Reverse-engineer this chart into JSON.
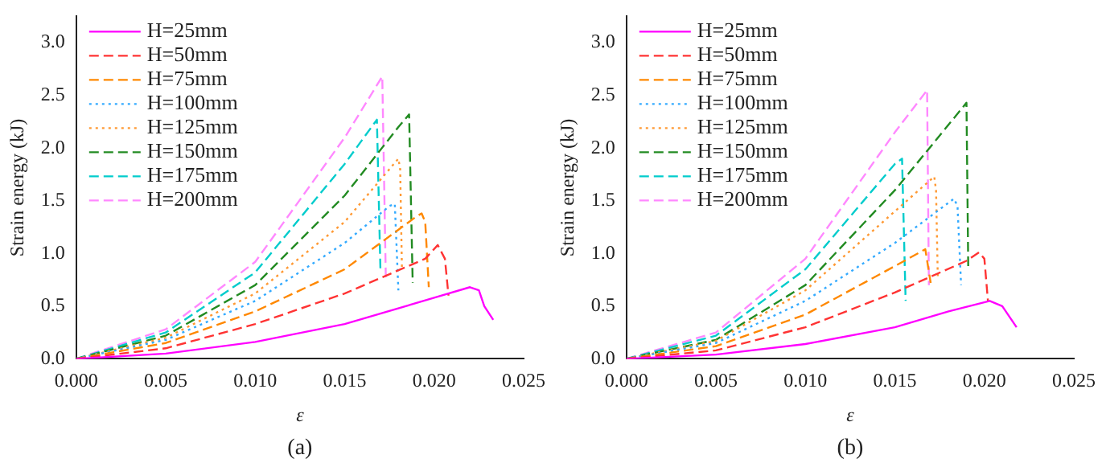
{
  "chart_data": [
    {
      "type": "line",
      "xlabel": "ε",
      "ylabel": "Strain energy (kJ)",
      "annotations": [
        "(a)"
      ],
      "legend": "top left",
      "grid": false,
      "xlim": [
        0,
        0.025
      ],
      "ylim": [
        0,
        3.25
      ],
      "xticks": [
        {
          "value": 0,
          "label": "0.000"
        },
        0.005,
        {
          "value": 0.01,
          "label": "0.010"
        },
        0.015,
        {
          "value": 0.02,
          "label": "0.020"
        },
        0.025
      ],
      "yticks": [
        {
          "value": 0,
          "label": "0.0"
        },
        0.5,
        {
          "value": 1,
          "label": "1.0"
        },
        1.5,
        {
          "value": 2,
          "label": "2.0"
        },
        2.5,
        {
          "value": 3,
          "label": "3.0"
        }
      ],
      "series": [
        {
          "name": "H=25mm",
          "color": "#ff00ff",
          "line_style": "solid",
          "x": [
            0,
            0.005,
            0.01,
            0.015,
            0.02,
            0.022,
            0.0225,
            0.0228,
            0.0233
          ],
          "values": [
            0,
            0.05,
            0.16,
            0.33,
            0.58,
            0.68,
            0.65,
            0.5,
            0.37
          ]
        },
        {
          "name": "H=50mm",
          "color": "#ff3333",
          "line_style": "dashed",
          "x": [
            0,
            0.005,
            0.01,
            0.015,
            0.0195,
            0.0202,
            0.0206,
            0.0208
          ],
          "values": [
            0,
            0.1,
            0.33,
            0.62,
            0.95,
            1.08,
            0.95,
            0.6
          ]
        },
        {
          "name": "H=75mm",
          "color": "#ff8800",
          "line_style": "dashed",
          "x": [
            0,
            0.005,
            0.01,
            0.015,
            0.019,
            0.0193,
            0.0195,
            0.0197
          ],
          "values": [
            0,
            0.15,
            0.45,
            0.85,
            1.35,
            1.38,
            1.3,
            0.68
          ]
        },
        {
          "name": "H=100mm",
          "color": "#33aaff",
          "line_style": "dotted",
          "x": [
            0,
            0.005,
            0.01,
            0.015,
            0.0175,
            0.0178,
            0.018
          ],
          "values": [
            0,
            0.18,
            0.55,
            1.1,
            1.45,
            1.47,
            0.65
          ]
        },
        {
          "name": "H=125mm",
          "color": "#ff9933",
          "line_style": "dotted",
          "x": [
            0,
            0.005,
            0.01,
            0.015,
            0.018,
            0.0181,
            0.0182
          ],
          "values": [
            0,
            0.2,
            0.62,
            1.3,
            1.9,
            1.8,
            0.85
          ]
        },
        {
          "name": "H=150mm",
          "color": "#228b22",
          "line_style": "dashed",
          "x": [
            0,
            0.005,
            0.01,
            0.015,
            0.018,
            0.0186,
            0.0188
          ],
          "values": [
            0,
            0.22,
            0.7,
            1.55,
            2.2,
            2.32,
            0.72
          ]
        },
        {
          "name": "H=175mm",
          "color": "#00cccc",
          "line_style": "dashed",
          "x": [
            0,
            0.005,
            0.01,
            0.015,
            0.0168,
            0.017
          ],
          "values": [
            0,
            0.25,
            0.82,
            1.85,
            2.27,
            0.82
          ]
        },
        {
          "name": "H=200mm",
          "color": "#ff88ff",
          "line_style": "dashed",
          "x": [
            0,
            0.005,
            0.01,
            0.015,
            0.0171,
            0.0173
          ],
          "values": [
            0,
            0.28,
            0.92,
            2.1,
            2.68,
            0.75
          ]
        }
      ]
    },
    {
      "type": "line",
      "xlabel": "ε",
      "ylabel": "Strain energy (kJ)",
      "annotations": [
        "(b)"
      ],
      "legend": "top left",
      "grid": false,
      "xlim": [
        0,
        0.025
      ],
      "ylim": [
        0,
        3.25
      ],
      "xticks": [
        {
          "value": 0,
          "label": "0.000"
        },
        0.005,
        {
          "value": 0.01,
          "label": "0.010"
        },
        0.015,
        {
          "value": 0.02,
          "label": "0.020"
        },
        0.025
      ],
      "yticks": [
        {
          "value": 0,
          "label": "0.0"
        },
        0.5,
        {
          "value": 1,
          "label": "1.0"
        },
        1.5,
        {
          "value": 2,
          "label": "2.0"
        },
        2.5,
        {
          "value": 3,
          "label": "3.0"
        }
      ],
      "series": [
        {
          "name": "H=25mm",
          "color": "#ff00ff",
          "line_style": "solid",
          "x": [
            0,
            0.005,
            0.01,
            0.015,
            0.018,
            0.0203,
            0.021,
            0.0218
          ],
          "values": [
            0,
            0.04,
            0.14,
            0.3,
            0.45,
            0.55,
            0.5,
            0.3
          ]
        },
        {
          "name": "H=50mm",
          "color": "#ff3333",
          "line_style": "dashed",
          "x": [
            0,
            0.005,
            0.01,
            0.015,
            0.019,
            0.0197,
            0.02,
            0.0202
          ],
          "values": [
            0,
            0.08,
            0.3,
            0.63,
            0.93,
            1.01,
            0.95,
            0.55
          ]
        },
        {
          "name": "H=75mm",
          "color": "#ff8800",
          "line_style": "dashed",
          "x": [
            0,
            0.005,
            0.01,
            0.015,
            0.0167,
            0.017
          ],
          "values": [
            0,
            0.12,
            0.42,
            0.88,
            1.04,
            0.72
          ]
        },
        {
          "name": "H=100mm",
          "color": "#33aaff",
          "line_style": "dotted",
          "x": [
            0,
            0.005,
            0.01,
            0.015,
            0.0183,
            0.0185,
            0.0187
          ],
          "values": [
            0,
            0.15,
            0.55,
            1.1,
            1.52,
            1.45,
            0.7
          ]
        },
        {
          "name": "H=125mm",
          "color": "#ff9933",
          "line_style": "dotted",
          "x": [
            0,
            0.005,
            0.01,
            0.015,
            0.0172,
            0.0173,
            0.0174
          ],
          "values": [
            0,
            0.17,
            0.65,
            1.4,
            1.73,
            1.6,
            0.75
          ]
        },
        {
          "name": "H=150mm",
          "color": "#228b22",
          "line_style": "dashed",
          "x": [
            0,
            0.005,
            0.01,
            0.015,
            0.019,
            0.0191
          ],
          "values": [
            0,
            0.18,
            0.7,
            1.6,
            2.43,
            0.85
          ]
        },
        {
          "name": "H=175mm",
          "color": "#00cccc",
          "line_style": "dashed",
          "x": [
            0,
            0.005,
            0.01,
            0.015,
            0.0154,
            0.0156
          ],
          "values": [
            0,
            0.22,
            0.85,
            1.85,
            1.9,
            0.55
          ]
        },
        {
          "name": "H=200mm",
          "color": "#ff88ff",
          "line_style": "dashed",
          "x": [
            0,
            0.005,
            0.01,
            0.015,
            0.0168,
            0.0169
          ],
          "values": [
            0,
            0.25,
            0.95,
            2.15,
            2.55,
            0.7
          ]
        }
      ]
    }
  ]
}
